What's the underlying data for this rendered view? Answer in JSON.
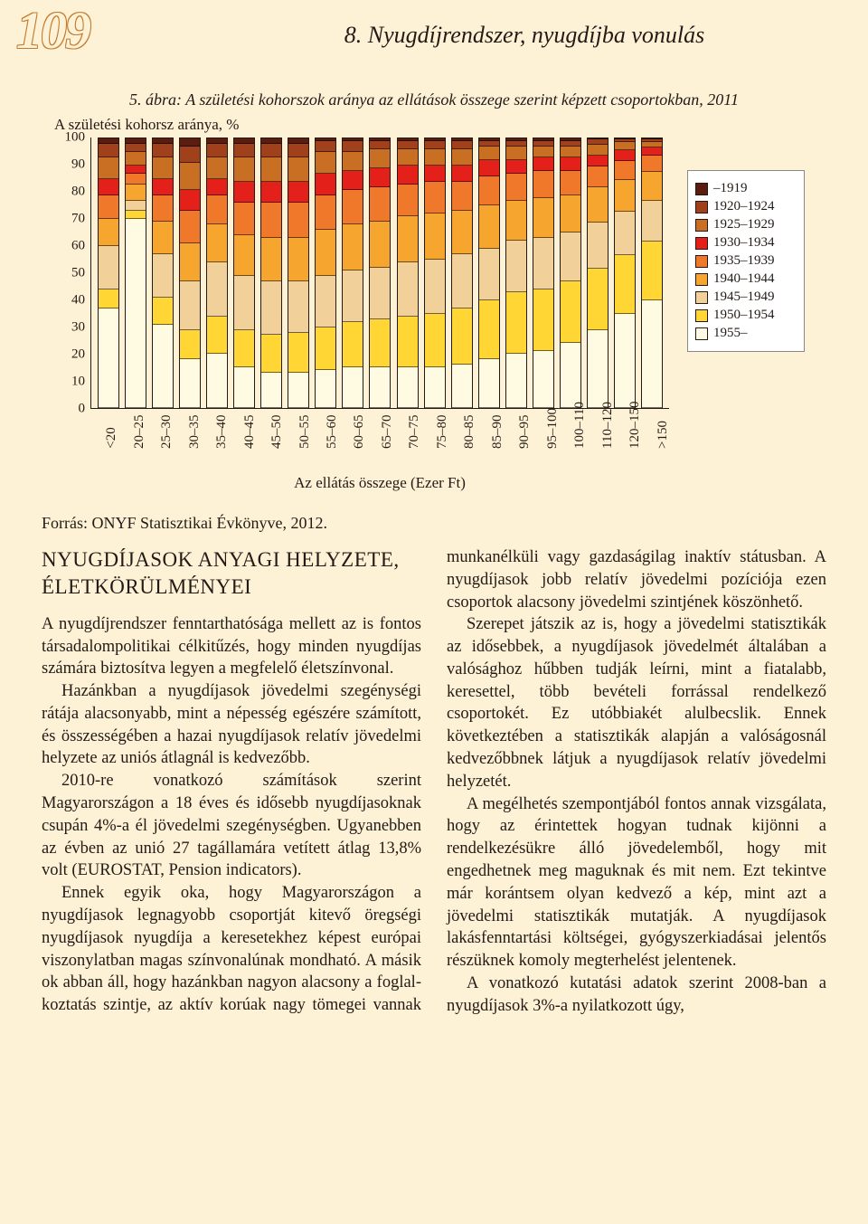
{
  "page_number": "109",
  "chapter_title": "8. Nyugdíjrendszer, nyugdíjba vonulás",
  "figure": {
    "title": "5. ábra: A születési kohorszok aránya az ellátások összege szerint képzett csoportokban, 2011",
    "type": "stacked-bar",
    "y_axis_title": "A születési kohorsz aránya, %",
    "x_axis_title": "Az ellátás összege (Ezer Ft)",
    "ylim": [
      0,
      100
    ],
    "ytick_step": 10,
    "y_ticks": [
      "0",
      "10",
      "20",
      "30",
      "40",
      "50",
      "60",
      "70",
      "80",
      "90",
      "100"
    ],
    "background_color": "#fdf2d6",
    "axis_color": "#231a16",
    "legend_bg": "#ffffff",
    "categories": [
      "<20",
      "20–25",
      "25–30",
      "30–35",
      "35–40",
      "40–45",
      "45–50",
      "50–55",
      "55–60",
      "60–65",
      "65–70",
      "70–75",
      "75–80",
      "80–85",
      "85–90",
      "90–95",
      "95–100",
      "100–110",
      "110–120",
      "120–150",
      ">150"
    ],
    "series": [
      {
        "label": "–1919",
        "color": "#5a1d10"
      },
      {
        "label": "1920–1924",
        "color": "#a1411b"
      },
      {
        "label": "1925–1929",
        "color": "#c96f23"
      },
      {
        "label": "1930–1934",
        "color": "#e32019"
      },
      {
        "label": "1935–1939",
        "color": "#f0782a"
      },
      {
        "label": "1940–1944",
        "color": "#f6a62f"
      },
      {
        "label": "1945–1949",
        "color": "#f2d099"
      },
      {
        "label": "1950–1954",
        "color": "#ffd633"
      },
      {
        "label": "1955–",
        "color": "#fffbe3"
      }
    ],
    "stacks": [
      [
        2,
        5,
        8,
        6,
        9,
        10,
        16,
        7,
        37
      ],
      [
        2,
        3,
        5,
        3,
        4,
        6,
        4,
        3,
        70
      ],
      [
        2,
        5,
        8,
        6,
        10,
        12,
        16,
        10,
        31
      ],
      [
        3,
        6,
        10,
        8,
        12,
        14,
        18,
        11,
        18
      ],
      [
        2,
        5,
        8,
        6,
        11,
        14,
        20,
        14,
        20
      ],
      [
        2,
        5,
        9,
        8,
        12,
        15,
        20,
        14,
        15
      ],
      [
        2,
        5,
        9,
        8,
        13,
        16,
        20,
        14,
        13
      ],
      [
        2,
        5,
        9,
        8,
        13,
        16,
        19,
        15,
        13
      ],
      [
        1,
        4,
        8,
        8,
        13,
        17,
        19,
        16,
        14
      ],
      [
        1,
        4,
        7,
        7,
        13,
        17,
        19,
        17,
        15
      ],
      [
        1,
        3,
        7,
        7,
        13,
        17,
        19,
        18,
        15
      ],
      [
        1,
        3,
        6,
        7,
        12,
        17,
        20,
        19,
        15
      ],
      [
        1,
        3,
        6,
        6,
        12,
        17,
        20,
        20,
        15
      ],
      [
        1,
        3,
        6,
        6,
        11,
        16,
        20,
        21,
        16
      ],
      [
        1,
        2,
        5,
        6,
        11,
        16,
        19,
        22,
        18
      ],
      [
        1,
        2,
        5,
        5,
        10,
        15,
        19,
        23,
        20
      ],
      [
        1,
        2,
        4,
        5,
        10,
        15,
        19,
        23,
        21
      ],
      [
        1,
        2,
        4,
        5,
        9,
        14,
        18,
        23,
        24
      ],
      [
        0,
        2,
        4,
        4,
        8,
        13,
        17,
        23,
        29
      ],
      [
        0,
        1,
        3,
        4,
        7,
        12,
        16,
        22,
        35
      ],
      [
        0,
        1,
        2,
        3,
        6,
        11,
        15,
        22,
        40
      ]
    ]
  },
  "source": "Forrás: ONYF Statisztikai Évkönyve, 2012.",
  "section_heading": "NYUGDÍJASOK ANYAGI HELYZETE, ÉLETKÖRÜLMÉNYEI",
  "paragraphs": [
    "A nyugdíjrendszer fenntarthatósága mellett az is fontos társadalompolitikai célkitűzés, hogy minden nyugdíjas számára biztosítva legyen a megfelelő életszínvonal.",
    "Hazánkban a nyugdíjasok jövedelmi sze­génységi rátája alacsonyabb, mint a népesség egészére számított, és összességében a hazai nyugdíjasok relatív jövedelmi helyzete az uniós átlagnál is kedvezőbb.",
    "2010-re vonatkozó  számítások szerint Magyarországon a 18 éves és idősebb nyug­díjasoknak csupán 4%-a él jövedelmi sze­génységben. Ugyanebben az évben az unió 27 tagállamára vetített átlag 13,8% volt (EUROSTAT, Pension indicators).",
    "Ennek egyik oka, hogy Magyarországon a nyugdíjasok legnagyobb csoportját kitevő öregségi nyugdíjasok nyugdíja a keresetekhez képest európai viszonylatban magas színvo­nalúnak mondható. A másik ok abban áll, hogy hazánkban nagyon alacsony a foglal­koztatás szintje, az aktív korúak nagy töme­gei vannak munkanélküli vagy gazdaságilag inaktív státusban. A nyugdíjasok jobb relatív jövedelmi pozíciója ezen csoportok alacsony jövedelmi szintjének köszönhető.",
    "Szerepet játszik az is, hogy a jövedelmi statisztikák az idősebbek, a nyugdíjasok jö­vedelmét általában a valósághoz hűbben tud­ják leírni, mint a fiatalabb, keresettel, több bevételi forrással rendelkező csoportokét. Ez utóbbiakét alulbecslik. Ennek következtében a statisztikák alapján a valóságosnál kedve­zőbbnek látjuk a nyugdíjasok relatív jövedel­mi helyzetét.",
    "A megélhetés szempontjából fontos annak vizsgálata, hogy az érintettek hogyan tudnak kijönni a rendelkezésükre álló jövedelemből, hogy mit engedhetnek meg maguknak és mit nem. Ezt tekintve már korántsem olyan ked­vező a kép, mint azt a jövedelmi statisztikák mutatják. A nyugdíjasok lakásfenntartási költségei, gyógyszerkiadásai jelentős részük­nek komoly megterhelést jelentenek.",
    "A vonatkozó kutatási adatok szerint 2008-ban a nyugdíjasok 3%-a nyilatkozott úgy,"
  ]
}
